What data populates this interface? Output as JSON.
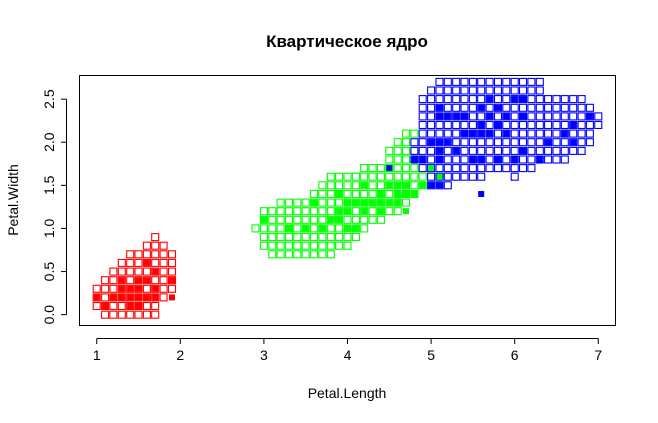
{
  "chart_data": {
    "type": "scatter",
    "title": "Квартическое ядро",
    "xlabel": "Petal.Length",
    "ylabel": "Petal.Width",
    "xlim": [
      0.8,
      7.2
    ],
    "ylim": [
      -0.12,
      2.78
    ],
    "x_ticks": [
      "1",
      "2",
      "3",
      "4",
      "5",
      "6",
      "7"
    ],
    "y_ticks": [
      "0.0",
      "0.5",
      "1.0",
      "1.5",
      "2.0",
      "2.5"
    ],
    "grid": false,
    "legend": "none",
    "colors": {
      "setosa": "#ff0000",
      "versicolor": "#00ff00",
      "virginica": "#0000ff"
    },
    "classified_grid": {
      "marker": "open-square",
      "x_step": 0.1,
      "y_step": 0.1,
      "rows": [
        {
          "class": "setosa",
          "y": 0.0,
          "x": [
            [
              1.1,
              1.7
            ]
          ]
        },
        {
          "class": "setosa",
          "y": 0.1,
          "x": [
            [
              1.0,
              1.7
            ]
          ]
        },
        {
          "class": "setosa",
          "y": 0.2,
          "x": [
            [
              1.0,
              1.8
            ]
          ]
        },
        {
          "class": "setosa",
          "y": 0.3,
          "x": [
            [
              1.0,
              1.9
            ]
          ]
        },
        {
          "class": "setosa",
          "y": 0.4,
          "x": [
            [
              1.1,
              1.9
            ]
          ]
        },
        {
          "class": "setosa",
          "y": 0.5,
          "x": [
            [
              1.2,
              1.9
            ]
          ]
        },
        {
          "class": "setosa",
          "y": 0.6,
          "x": [
            [
              1.3,
              1.9
            ]
          ]
        },
        {
          "class": "setosa",
          "y": 0.7,
          "x": [
            [
              1.4,
              1.9
            ]
          ]
        },
        {
          "class": "setosa",
          "y": 0.8,
          "x": [
            [
              1.6,
              1.8
            ]
          ]
        },
        {
          "class": "setosa",
          "y": 0.9,
          "x": [
            [
              1.7,
              1.7
            ]
          ]
        },
        {
          "class": "versicolor",
          "y": 0.7,
          "x": [
            [
              3.1,
              3.8
            ]
          ]
        },
        {
          "class": "versicolor",
          "y": 0.8,
          "x": [
            [
              3.0,
              4.0
            ]
          ]
        },
        {
          "class": "versicolor",
          "y": 0.9,
          "x": [
            [
              3.0,
              4.1
            ]
          ]
        },
        {
          "class": "versicolor",
          "y": 1.0,
          "x": [
            [
              2.9,
              4.2
            ]
          ]
        },
        {
          "class": "versicolor",
          "y": 1.1,
          "x": [
            [
              3.0,
              4.4
            ]
          ]
        },
        {
          "class": "versicolor",
          "y": 1.2,
          "x": [
            [
              3.0,
              4.6
            ]
          ]
        },
        {
          "class": "versicolor",
          "y": 1.3,
          "x": [
            [
              3.2,
              4.7
            ]
          ]
        },
        {
          "class": "versicolor",
          "y": 1.4,
          "x": [
            [
              3.6,
              4.8
            ]
          ]
        },
        {
          "class": "versicolor",
          "y": 1.5,
          "x": [
            [
              3.7,
              4.9
            ]
          ]
        },
        {
          "class": "versicolor",
          "y": 1.6,
          "x": [
            [
              3.8,
              4.9
            ]
          ]
        },
        {
          "class": "versicolor",
          "y": 1.7,
          "x": [
            [
              4.2,
              4.8
            ]
          ]
        },
        {
          "class": "versicolor",
          "y": 1.8,
          "x": [
            [
              4.5,
              4.7
            ]
          ]
        },
        {
          "class": "versicolor",
          "y": 1.9,
          "x": [
            [
              4.5,
              4.8
            ]
          ]
        },
        {
          "class": "versicolor",
          "y": 2.0,
          "x": [
            [
              4.6,
              4.7
            ]
          ]
        },
        {
          "class": "versicolor",
          "y": 2.1,
          "x": [
            [
              4.7,
              4.8
            ]
          ]
        },
        {
          "class": "virginica",
          "y": 1.5,
          "x": [
            [
              5.0,
              5.2
            ]
          ]
        },
        {
          "class": "virginica",
          "y": 1.6,
          "x": [
            [
              5.0,
              5.6
            ],
            [
              6.0,
              6.0
            ]
          ]
        },
        {
          "class": "virginica",
          "y": 1.7,
          "x": [
            [
              4.9,
              6.2
            ]
          ]
        },
        {
          "class": "virginica",
          "y": 1.8,
          "x": [
            [
              4.8,
              6.6
            ]
          ]
        },
        {
          "class": "virginica",
          "y": 1.9,
          "x": [
            [
              4.8,
              6.8
            ]
          ]
        },
        {
          "class": "virginica",
          "y": 2.0,
          "x": [
            [
              4.8,
              6.9
            ]
          ]
        },
        {
          "class": "virginica",
          "y": 2.1,
          "x": [
            [
              4.9,
              6.9
            ]
          ]
        },
        {
          "class": "virginica",
          "y": 2.2,
          "x": [
            [
              4.9,
              7.0
            ]
          ]
        },
        {
          "class": "virginica",
          "y": 2.3,
          "x": [
            [
              4.9,
              7.0
            ]
          ]
        },
        {
          "class": "virginica",
          "y": 2.4,
          "x": [
            [
              4.9,
              6.9
            ]
          ]
        },
        {
          "class": "virginica",
          "y": 2.5,
          "x": [
            [
              4.9,
              6.8
            ]
          ]
        },
        {
          "class": "virginica",
          "y": 2.6,
          "x": [
            [
              5.0,
              6.3
            ]
          ]
        },
        {
          "class": "virginica",
          "y": 2.7,
          "x": [
            [
              5.1,
              6.3
            ]
          ]
        }
      ]
    },
    "series": [
      {
        "class": "setosa",
        "marker": "filled-square",
        "points": [
          [
            1.0,
            0.2
          ],
          [
            1.1,
            0.1
          ],
          [
            1.2,
            0.2
          ],
          [
            1.3,
            0.2
          ],
          [
            1.3,
            0.3
          ],
          [
            1.3,
            0.4
          ],
          [
            1.4,
            0.1
          ],
          [
            1.4,
            0.2
          ],
          [
            1.4,
            0.3
          ],
          [
            1.5,
            0.1
          ],
          [
            1.5,
            0.2
          ],
          [
            1.5,
            0.3
          ],
          [
            1.5,
            0.4
          ],
          [
            1.6,
            0.2
          ],
          [
            1.6,
            0.4
          ],
          [
            1.6,
            0.6
          ],
          [
            1.7,
            0.2
          ],
          [
            1.7,
            0.3
          ],
          [
            1.7,
            0.5
          ],
          [
            1.9,
            0.2
          ],
          [
            1.9,
            0.4
          ]
        ]
      },
      {
        "class": "versicolor",
        "marker": "filled-square",
        "points": [
          [
            3.0,
            1.1
          ],
          [
            3.3,
            1.0
          ],
          [
            3.5,
            1.0
          ],
          [
            3.6,
            1.3
          ],
          [
            3.7,
            1.0
          ],
          [
            3.8,
            1.1
          ],
          [
            3.9,
            1.1
          ],
          [
            3.9,
            1.2
          ],
          [
            3.9,
            1.4
          ],
          [
            4.0,
            1.0
          ],
          [
            4.0,
            1.2
          ],
          [
            4.0,
            1.3
          ],
          [
            4.1,
            1.0
          ],
          [
            4.1,
            1.3
          ],
          [
            4.2,
            1.2
          ],
          [
            4.2,
            1.3
          ],
          [
            4.2,
            1.5
          ],
          [
            4.3,
            1.3
          ],
          [
            4.4,
            1.2
          ],
          [
            4.4,
            1.3
          ],
          [
            4.4,
            1.4
          ],
          [
            4.5,
            1.3
          ],
          [
            4.5,
            1.5
          ],
          [
            4.5,
            1.7
          ],
          [
            4.6,
            1.3
          ],
          [
            4.6,
            1.4
          ],
          [
            4.6,
            1.5
          ],
          [
            4.7,
            1.2
          ],
          [
            4.7,
            1.4
          ],
          [
            4.7,
            1.5
          ],
          [
            4.8,
            1.4
          ],
          [
            4.8,
            1.8
          ],
          [
            4.9,
            1.5
          ],
          [
            5.0,
            1.7
          ],
          [
            5.1,
            1.6
          ]
        ]
      },
      {
        "class": "virginica",
        "marker": "filled-square",
        "points": [
          [
            4.5,
            1.7
          ],
          [
            4.8,
            1.8
          ],
          [
            4.9,
            1.8
          ],
          [
            5.0,
            1.5
          ],
          [
            5.0,
            2.0
          ],
          [
            5.1,
            1.5
          ],
          [
            5.1,
            1.8
          ],
          [
            5.1,
            1.9
          ],
          [
            5.1,
            2.0
          ],
          [
            5.1,
            2.3
          ],
          [
            5.1,
            2.4
          ],
          [
            5.2,
            2.0
          ],
          [
            5.2,
            2.3
          ],
          [
            5.3,
            1.9
          ],
          [
            5.3,
            2.3
          ],
          [
            5.4,
            2.1
          ],
          [
            5.4,
            2.3
          ],
          [
            5.5,
            1.8
          ],
          [
            5.5,
            2.1
          ],
          [
            5.6,
            1.8
          ],
          [
            5.6,
            2.1
          ],
          [
            5.6,
            2.2
          ],
          [
            5.6,
            2.4
          ],
          [
            5.7,
            2.1
          ],
          [
            5.7,
            2.3
          ],
          [
            5.7,
            2.5
          ],
          [
            5.8,
            1.8
          ],
          [
            5.8,
            2.2
          ],
          [
            5.8,
            2.4
          ],
          [
            5.9,
            2.1
          ],
          [
            5.9,
            2.3
          ],
          [
            6.0,
            1.8
          ],
          [
            6.0,
            2.5
          ],
          [
            6.1,
            1.9
          ],
          [
            6.1,
            2.3
          ],
          [
            6.1,
            2.5
          ],
          [
            6.3,
            1.8
          ],
          [
            6.4,
            2.0
          ],
          [
            6.6,
            2.1
          ],
          [
            6.7,
            2.0
          ],
          [
            6.7,
            2.2
          ],
          [
            6.9,
            2.3
          ],
          [
            5.6,
            1.4
          ]
        ]
      }
    ]
  }
}
